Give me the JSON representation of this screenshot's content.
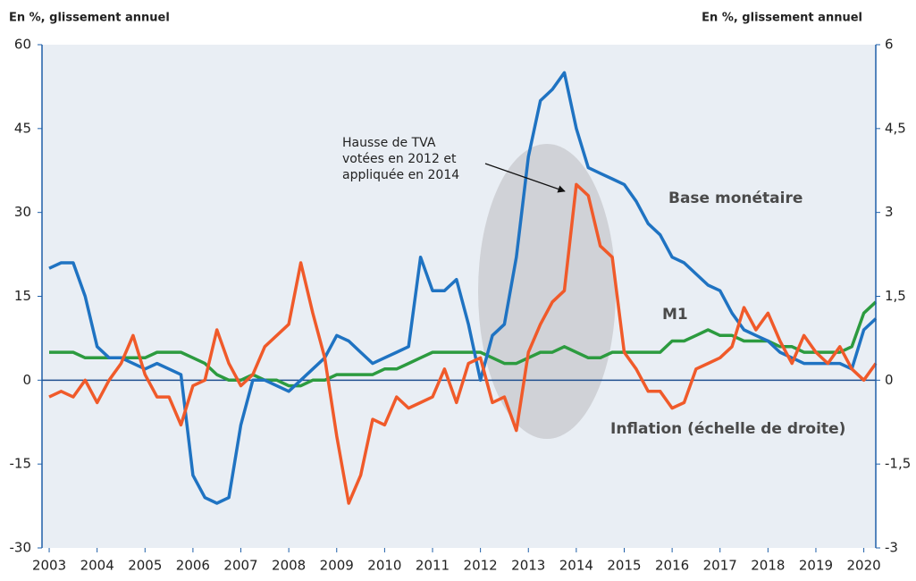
{
  "chart_data": {
    "type": "line",
    "y_label": "En %, glissement annuel",
    "y2_label": "En %, glissement annuel",
    "annotation": [
      "Hausse de TVA",
      "votées en 2012 et",
      "appliquée en 2014"
    ],
    "x": [
      2003,
      2003.25,
      2003.5,
      2003.75,
      2004,
      2004.25,
      2004.5,
      2004.75,
      2005,
      2005.25,
      2005.5,
      2005.75,
      2006,
      2006.25,
      2006.5,
      2006.75,
      2007,
      2007.25,
      2007.5,
      2007.75,
      2008,
      2008.25,
      2008.5,
      2008.75,
      2009,
      2009.25,
      2009.5,
      2009.75,
      2010,
      2010.25,
      2010.5,
      2010.75,
      2011,
      2011.25,
      2011.5,
      2011.75,
      2012,
      2012.25,
      2012.5,
      2012.75,
      2013,
      2013.25,
      2013.5,
      2013.75,
      2014,
      2014.25,
      2014.5,
      2014.75,
      2015,
      2015.25,
      2015.5,
      2015.75,
      2016,
      2016.25,
      2016.5,
      2016.75,
      2017,
      2017.25,
      2017.5,
      2017.75,
      2018,
      2018.25,
      2018.5,
      2018.75,
      2019,
      2019.25,
      2019.5,
      2019.75,
      2020,
      2020.25
    ],
    "series": [
      {
        "name": "Base monétaire",
        "color": "#1f73c2",
        "values": [
          20,
          21,
          21,
          15,
          6,
          4,
          4,
          3,
          2,
          3,
          2,
          1,
          -17,
          -21,
          -22,
          -21,
          -8,
          0,
          0,
          -1,
          -2,
          0,
          2,
          4,
          8,
          7,
          5,
          3,
          4,
          5,
          6,
          22,
          16,
          16,
          18,
          10,
          0,
          8,
          10,
          22,
          40,
          50,
          52,
          55,
          45,
          38,
          37,
          36,
          35,
          32,
          28,
          26,
          22,
          21,
          19,
          17,
          16,
          12,
          9,
          8,
          7,
          5,
          4,
          3,
          3,
          3,
          3,
          2,
          9,
          11
        ]
      },
      {
        "name": "M1",
        "color": "#2c9b3f",
        "values": [
          5,
          5,
          5,
          4,
          4,
          4,
          4,
          4,
          4,
          5,
          5,
          5,
          4,
          3,
          1,
          0,
          0,
          1,
          0,
          0,
          -1,
          -1,
          0,
          0,
          1,
          1,
          1,
          1,
          2,
          2,
          3,
          4,
          5,
          5,
          5,
          5,
          5,
          4,
          3,
          3,
          4,
          5,
          5,
          6,
          5,
          4,
          4,
          5,
          5,
          5,
          5,
          5,
          7,
          7,
          8,
          9,
          8,
          8,
          7,
          7,
          7,
          6,
          6,
          5,
          5,
          5,
          5,
          6,
          12,
          14
        ]
      },
      {
        "name": "Inflation (échelle de droite)",
        "color": "#f05a2a",
        "axis": "y2",
        "values": [
          -0.3,
          -0.2,
          -0.3,
          0,
          -0.4,
          0,
          0.3,
          0.8,
          0.1,
          -0.3,
          -0.3,
          -0.8,
          -0.1,
          0,
          0.9,
          0.3,
          -0.1,
          0.1,
          0.6,
          0.8,
          1.0,
          2.1,
          1.2,
          0.4,
          -1.0,
          -2.2,
          -1.7,
          -0.7,
          -0.8,
          -0.3,
          -0.5,
          -0.4,
          -0.3,
          0.2,
          -0.4,
          0.3,
          0.4,
          -0.4,
          -0.3,
          -0.9,
          0.5,
          1.0,
          1.4,
          1.6,
          3.5,
          3.3,
          2.4,
          2.2,
          0.5,
          0.2,
          -0.2,
          -0.2,
          -0.5,
          -0.4,
          0.2,
          0.3,
          0.4,
          0.6,
          1.3,
          0.9,
          1.2,
          0.7,
          0.3,
          0.8,
          0.5,
          0.3,
          0.6,
          0.2,
          0,
          0.3
        ]
      }
    ],
    "xlim": [
      2002.85,
      2020.25
    ],
    "xticks": [
      2003,
      2004,
      2005,
      2006,
      2007,
      2008,
      2009,
      2010,
      2011,
      2012,
      2013,
      2014,
      2015,
      2016,
      2017,
      2018,
      2019,
      2020
    ],
    "ylim": [
      -30,
      60
    ],
    "yticks": [
      -30,
      -15,
      0,
      15,
      30,
      45,
      60
    ],
    "y2lim": [
      -3,
      6
    ],
    "y2ticks": [
      -3,
      {
        "value": -1.5,
        "label": "-1,5"
      },
      0,
      {
        "value": 1.5,
        "label": "1,5"
      },
      3,
      {
        "value": 4.5,
        "label": "4,5"
      },
      6
    ]
  }
}
